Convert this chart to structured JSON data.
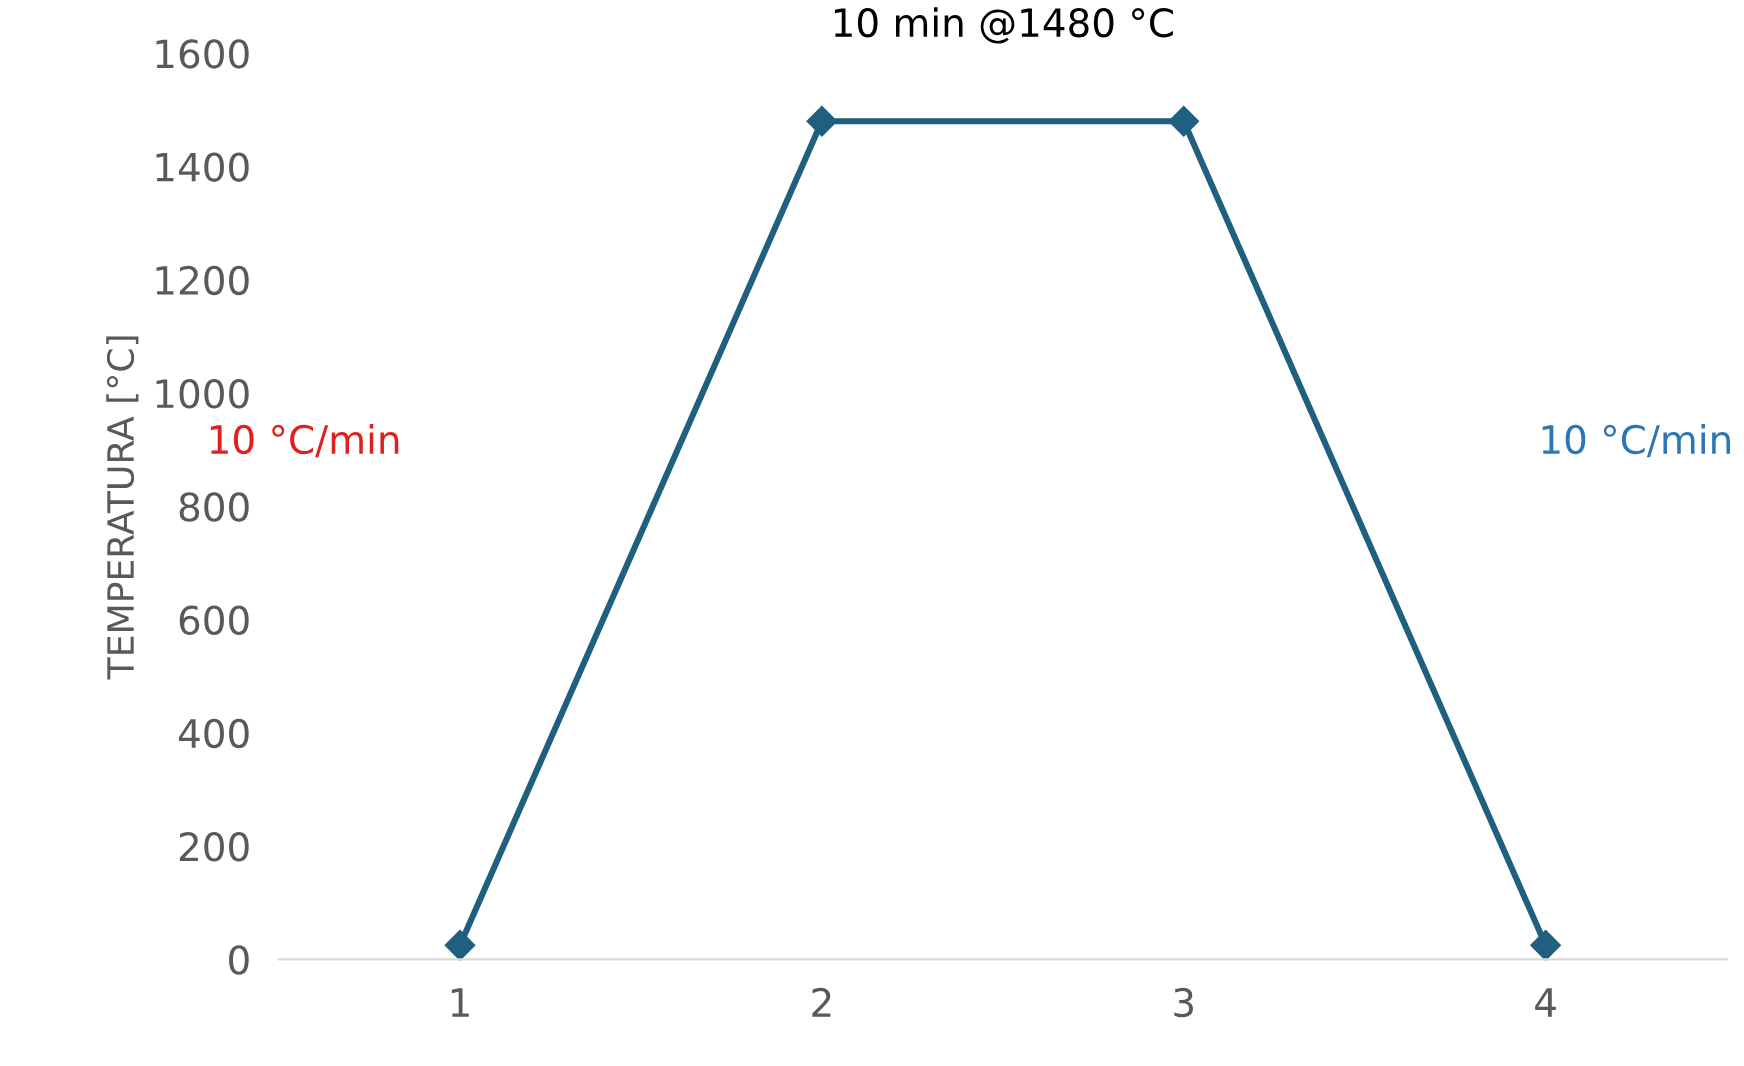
{
  "chart_data": {
    "type": "line",
    "ylabel": "TEMPERATURA [°C]",
    "categories": [
      "1",
      "2",
      "3",
      "4"
    ],
    "series": [
      {
        "color": "#1f5f7f",
        "values": [
          25,
          1480,
          1480,
          25
        ]
      }
    ],
    "ylim": [
      0,
      1600
    ],
    "yticks": [
      0,
      200,
      400,
      600,
      800,
      1000,
      1200,
      1400,
      1600
    ],
    "marker": "diamond",
    "line_style": "solid",
    "grid": false,
    "legend": false,
    "annotations": [
      "10 min @1480 °C",
      "10 °C/min",
      "10 °C/min"
    ]
  }
}
